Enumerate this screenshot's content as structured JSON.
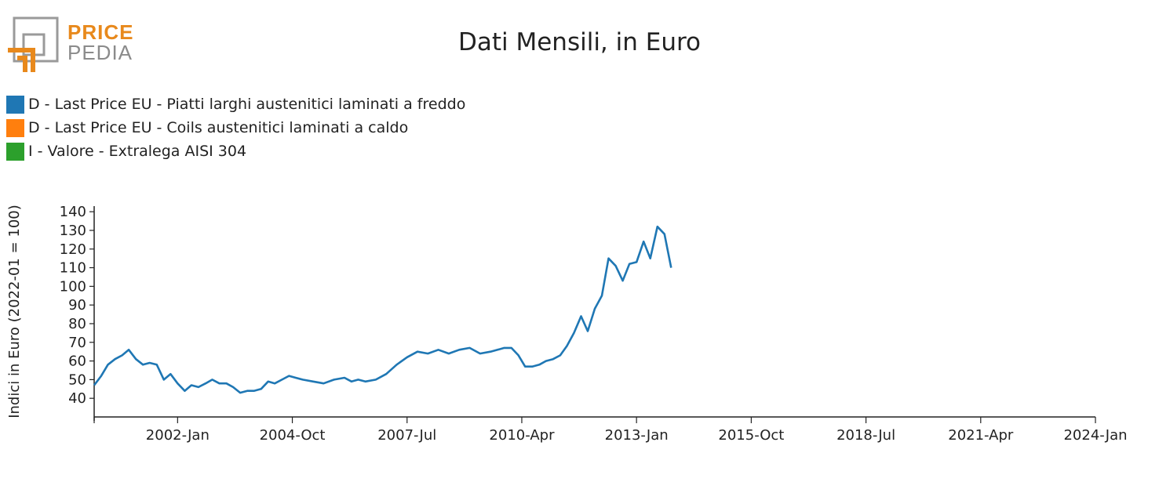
{
  "logo": {
    "line1": "PRICE",
    "line2": "PEDIA"
  },
  "chart_data": {
    "type": "line",
    "title": "Dati Mensili, in Euro",
    "ylabel": "Indici in Euro (2022-01 = 100)",
    "xlabel": "",
    "ylim": [
      30,
      143
    ],
    "yticks": [
      40,
      50,
      60,
      70,
      80,
      90,
      100,
      110,
      120,
      130,
      140
    ],
    "x_ticks": [
      "2002-Jan",
      "2004-Oct",
      "2007-Jul",
      "2010-Apr",
      "2013-Jan",
      "2015-Oct",
      "2018-Jul",
      "2021-Apr",
      "2024-Jan"
    ],
    "x_tick_positions": [
      2002.0,
      2004.75,
      2007.5,
      2010.25,
      2013.0,
      2015.75,
      2018.5,
      2021.25,
      2024.0
    ],
    "xlim": [
      2000.0,
      2024.0
    ],
    "grid": false,
    "legend_position": "top-left",
    "series": [
      {
        "name": "D - Last Price EU - Piatti larghi austenitici laminati a freddo",
        "color": "#1f77b4",
        "points": [
          [
            2000.0,
            47
          ],
          [
            2000.17,
            52
          ],
          [
            2000.33,
            58
          ],
          [
            2000.5,
            61
          ],
          [
            2000.67,
            63
          ],
          [
            2000.83,
            66
          ],
          [
            2001.0,
            61
          ],
          [
            2001.17,
            58
          ],
          [
            2001.33,
            59
          ],
          [
            2001.5,
            58
          ],
          [
            2001.67,
            50
          ],
          [
            2001.83,
            53
          ],
          [
            2002.0,
            48
          ],
          [
            2002.17,
            44
          ],
          [
            2002.33,
            47
          ],
          [
            2002.5,
            46
          ],
          [
            2002.67,
            48
          ],
          [
            2002.83,
            50
          ],
          [
            2003.0,
            48
          ],
          [
            2003.17,
            48
          ],
          [
            2003.33,
            46
          ],
          [
            2003.5,
            43
          ],
          [
            2003.67,
            44
          ],
          [
            2003.83,
            44
          ],
          [
            2004.0,
            45
          ],
          [
            2004.17,
            49
          ],
          [
            2004.33,
            48
          ],
          [
            2004.5,
            50
          ],
          [
            2004.67,
            52
          ],
          [
            2004.83,
            51
          ],
          [
            2005.0,
            50
          ],
          [
            2005.25,
            49
          ],
          [
            2005.5,
            48
          ],
          [
            2005.75,
            50
          ],
          [
            2006.0,
            51
          ],
          [
            2006.17,
            49
          ],
          [
            2006.33,
            50
          ],
          [
            2006.5,
            49
          ],
          [
            2006.75,
            50
          ],
          [
            2007.0,
            53
          ],
          [
            2007.25,
            58
          ],
          [
            2007.5,
            62
          ],
          [
            2007.75,
            65
          ],
          [
            2008.0,
            64
          ],
          [
            2008.25,
            66
          ],
          [
            2008.5,
            64
          ],
          [
            2008.75,
            66
          ],
          [
            2009.0,
            67
          ],
          [
            2009.25,
            64
          ],
          [
            2009.5,
            65
          ],
          [
            2009.67,
            66
          ],
          [
            2009.83,
            67
          ],
          [
            2010.0,
            67
          ],
          [
            2010.17,
            63
          ],
          [
            2010.33,
            57
          ],
          [
            2010.5,
            57
          ],
          [
            2010.67,
            58
          ],
          [
            2010.83,
            60
          ],
          [
            2011.0,
            61
          ],
          [
            2011.17,
            63
          ],
          [
            2011.33,
            68
          ],
          [
            2011.5,
            75
          ],
          [
            2011.67,
            84
          ],
          [
            2011.83,
            76
          ],
          [
            2012.0,
            88
          ],
          [
            2012.17,
            95
          ],
          [
            2012.33,
            115
          ],
          [
            2012.5,
            111
          ],
          [
            2012.67,
            103
          ],
          [
            2012.83,
            112
          ],
          [
            2013.0,
            113
          ],
          [
            2013.17,
            124
          ],
          [
            2013.33,
            115
          ],
          [
            2013.5,
            132
          ],
          [
            2013.67,
            128
          ],
          [
            2013.83,
            110
          ]
        ]
      },
      {
        "name": "D - Last Price EU - Coils austenitici laminati a caldo",
        "color": "#ff7f0e",
        "points": []
      },
      {
        "name": "I - Valore - Extralega AISI 304",
        "color": "#2ca02c",
        "points": []
      }
    ]
  }
}
